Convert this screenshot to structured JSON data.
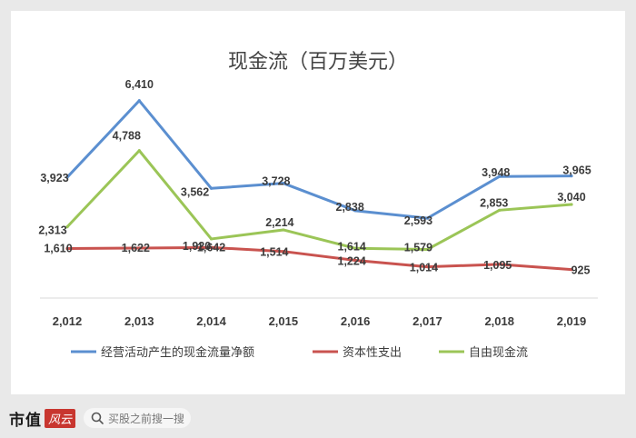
{
  "footer": {
    "brand": "市值",
    "brand_seal": "风云",
    "search_placeholder": "买股之前搜一搜"
  },
  "watermark_text": "市值风云",
  "chart_data": {
    "type": "line",
    "title": "现金流（百万美元）",
    "categories": [
      "2,012",
      "2,013",
      "2,014",
      "2,015",
      "2,016",
      "2,017",
      "2,018",
      "2,019"
    ],
    "ylim": [
      0,
      7200
    ],
    "grid": false,
    "legend_position": "bottom",
    "series": [
      {
        "name": "经营活动产生的现金流量净额",
        "color": "#5b8fd0",
        "values": [
          3923,
          6410,
          3562,
          3728,
          2838,
          2593,
          3948,
          3965
        ],
        "labels": [
          "3,923",
          "6,410",
          "3,562",
          "3,728",
          "2,838",
          "2,593",
          "3,948",
          "3,965"
        ]
      },
      {
        "name": "资本性支出",
        "color": "#c9534f",
        "values": [
          1610,
          1622,
          1642,
          1514,
          1224,
          1014,
          1095,
          925
        ],
        "labels": [
          "1,610",
          "1,622",
          "1,642",
          "1,514",
          "1,224",
          "1,014",
          "1,095",
          "925"
        ]
      },
      {
        "name": "自由现金流",
        "color": "#9bc557",
        "values": [
          2313,
          4788,
          1920,
          2214,
          1614,
          1579,
          2853,
          3040
        ],
        "labels": [
          "2,313",
          "4,788",
          "1,920",
          "2,214",
          "1,614",
          "1,579",
          "2,853",
          "3,040"
        ]
      }
    ]
  }
}
